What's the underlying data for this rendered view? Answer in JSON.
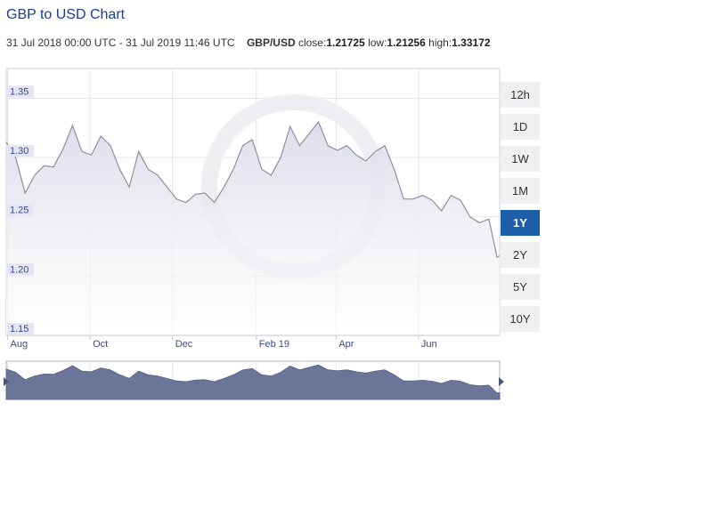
{
  "header": {
    "title": "GBP to USD Chart",
    "date_range": "31 Jul 2018 00:00 UTC - 31 Jul 2019 11:46 UTC",
    "pair": "GBP/USD",
    "close_label": "close:",
    "close_value": "1.21725",
    "low_label": "low:",
    "low_value": "1.21256",
    "high_label": "high:",
    "high_value": "1.33172"
  },
  "range_buttons": [
    {
      "label": "12h",
      "active": false
    },
    {
      "label": "1D",
      "active": false
    },
    {
      "label": "1W",
      "active": false
    },
    {
      "label": "1M",
      "active": false
    },
    {
      "label": "1Y",
      "active": true
    },
    {
      "label": "2Y",
      "active": false
    },
    {
      "label": "5Y",
      "active": false
    },
    {
      "label": "10Y",
      "active": false
    }
  ],
  "colors": {
    "line": "#8a8fa8",
    "area": "#dcdde8",
    "navigator": "#6b7598",
    "active_button": "#1d5ea8",
    "y_tick_bg": "#e4e6f2"
  },
  "chart_data": {
    "type": "area",
    "title": "GBP to USD Chart",
    "ylim": [
      1.15,
      1.375
    ],
    "y_ticks": [
      "1.35",
      "1.30",
      "1.25",
      "1.20",
      "1.15"
    ],
    "y_tick_values": [
      1.35,
      1.3,
      1.25,
      1.2,
      1.15
    ],
    "x_tick_labels": [
      "Aug",
      "Oct",
      "Dec",
      "Feb 19",
      "Apr",
      "Jun"
    ],
    "x_tick_dates": [
      "2018-08-01",
      "2018-10-01",
      "2018-12-01",
      "2019-02-01",
      "2019-04-01",
      "2019-06-01"
    ],
    "x_start": "2018-07-31",
    "x_end": "2019-07-31",
    "grid": true,
    "series": [
      {
        "x": [
          "2018-07-31",
          "2018-08-07",
          "2018-08-14",
          "2018-08-21",
          "2018-08-28",
          "2018-09-04",
          "2018-09-11",
          "2018-09-18",
          "2018-09-25",
          "2018-10-02",
          "2018-10-09",
          "2018-10-16",
          "2018-10-23",
          "2018-10-30",
          "2018-11-06",
          "2018-11-13",
          "2018-11-20",
          "2018-11-27",
          "2018-12-04",
          "2018-12-11",
          "2018-12-18",
          "2018-12-25",
          "2019-01-01",
          "2019-01-08",
          "2019-01-15",
          "2019-01-22",
          "2019-01-29",
          "2019-02-05",
          "2019-02-12",
          "2019-02-19",
          "2019-02-26",
          "2019-03-05",
          "2019-03-12",
          "2019-03-19",
          "2019-03-26",
          "2019-04-02",
          "2019-04-09",
          "2019-04-16",
          "2019-04-23",
          "2019-04-30",
          "2019-05-07",
          "2019-05-14",
          "2019-05-21",
          "2019-05-28",
          "2019-06-04",
          "2019-06-11",
          "2019-06-18",
          "2019-06-25",
          "2019-07-02",
          "2019-07-09",
          "2019-07-16",
          "2019-07-23",
          "2019-07-29",
          "2019-07-31"
        ],
        "y": [
          1.313,
          1.3,
          1.27,
          1.285,
          1.293,
          1.292,
          1.307,
          1.327,
          1.305,
          1.302,
          1.318,
          1.31,
          1.29,
          1.275,
          1.305,
          1.29,
          1.285,
          1.275,
          1.265,
          1.262,
          1.269,
          1.27,
          1.262,
          1.275,
          1.29,
          1.31,
          1.315,
          1.29,
          1.285,
          1.3,
          1.326,
          1.31,
          1.32,
          1.33,
          1.31,
          1.306,
          1.31,
          1.302,
          1.297,
          1.305,
          1.31,
          1.29,
          1.265,
          1.265,
          1.268,
          1.264,
          1.255,
          1.268,
          1.264,
          1.25,
          1.245,
          1.248,
          1.216,
          1.217
        ]
      }
    ]
  }
}
